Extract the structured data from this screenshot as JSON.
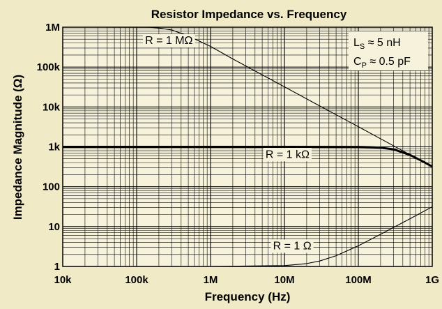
{
  "chart_data": {
    "type": "line",
    "title": "Resistor Impedance vs. Frequency",
    "xlabel": "Frequency (Hz)",
    "ylabel": "Impedance Magnitude (Ω)",
    "xscale": "log",
    "yscale": "log",
    "xlim": [
      10000,
      1000000000
    ],
    "ylim": [
      1,
      1000000
    ],
    "grid": true,
    "x_ticks": [
      {
        "value": 10000,
        "label": "10k"
      },
      {
        "value": 100000,
        "label": "100k"
      },
      {
        "value": 1000000,
        "label": "1M"
      },
      {
        "value": 10000000,
        "label": "10M"
      },
      {
        "value": 100000000,
        "label": "100M"
      },
      {
        "value": 1000000000,
        "label": "1G"
      }
    ],
    "y_ticks": [
      {
        "value": 1,
        "label": "1"
      },
      {
        "value": 10,
        "label": "10"
      },
      {
        "value": 100,
        "label": "100"
      },
      {
        "value": 1000,
        "label": "1k"
      },
      {
        "value": 10000,
        "label": "10k"
      },
      {
        "value": 100000,
        "label": "100k"
      },
      {
        "value": 1000000,
        "label": "1M"
      }
    ],
    "parasitics": {
      "ls": {
        "prefix": "L",
        "sub": "S",
        "text": " ≈ 5 nH",
        "value_H": 5e-09
      },
      "cp": {
        "prefix": "C",
        "sub": "P",
        "text": " ≈ 0.5 pF",
        "value_F": 5e-13
      }
    },
    "series": [
      {
        "name": "R = 1 MΩ",
        "resistance": 1000000,
        "stroke_width": 1.1,
        "color": "#000000",
        "x": [
          10000,
          30000,
          100000,
          150000,
          200000,
          300000,
          500000,
          1000000,
          2000000,
          5000000,
          10000000,
          30000000,
          100000000,
          300000000,
          1000000000
        ],
        "y": [
          1000000,
          999800,
          998000,
          990000,
          955000,
          850000,
          600000,
          330000,
          160000,
          64000,
          32000,
          10600,
          3200,
          1060,
          318
        ]
      },
      {
        "name": "R = 1 kΩ",
        "resistance": 1000,
        "stroke_width": 3.0,
        "color": "#000000",
        "x": [
          10000,
          1000000,
          10000000,
          100000000,
          150000000,
          200000000,
          300000000,
          500000000,
          700000000,
          1000000000
        ],
        "y": [
          1000,
          1000,
          1000,
          995,
          975,
          950,
          865,
          625,
          457,
          320
        ]
      },
      {
        "name": "R = 1 Ω",
        "resistance": 1,
        "stroke_width": 1.1,
        "color": "#000000",
        "x": [
          10000,
          1000000,
          10000000,
          20000000,
          30000000,
          50000000,
          100000000,
          200000000,
          500000000,
          1000000000
        ],
        "y": [
          1,
          1,
          1.05,
          1.18,
          1.37,
          1.86,
          3.3,
          6.4,
          15.7,
          31.4
        ]
      }
    ],
    "labels": [
      {
        "text": "R = 1 MΩ",
        "x": 130000,
        "y": 380000,
        "anchor": "start"
      },
      {
        "text": "R = 1 kΩ",
        "x": 11000000,
        "y": 530,
        "anchor": "middle"
      },
      {
        "text": "R = 1 Ω",
        "x": 7000000,
        "y": 2.7,
        "anchor": "start"
      }
    ]
  }
}
